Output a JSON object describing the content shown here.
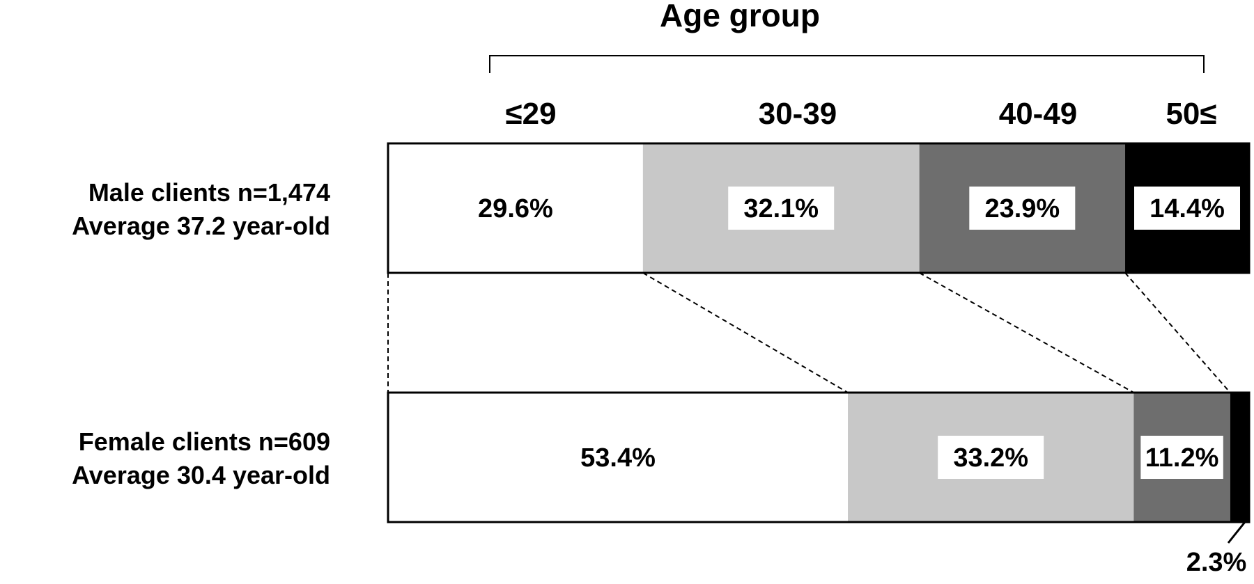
{
  "chart_data": {
    "type": "bar",
    "orientation": "horizontal",
    "stacked": true,
    "normalized_percent": true,
    "title": "Age group",
    "categories": [
      "≤29",
      "30-39",
      "40-49",
      "50≤"
    ],
    "series": [
      {
        "name": "Male clients n=1,474",
        "average_label": "Average 37.2 year-old",
        "values": [
          29.6,
          32.1,
          23.9,
          14.4
        ],
        "labels": [
          "29.6%",
          "32.1%",
          "23.9%",
          "14.4%"
        ]
      },
      {
        "name": "Female clients n=609",
        "average_label": "Average 30.4 year-old",
        "values": [
          53.4,
          33.2,
          11.2,
          2.3
        ],
        "labels": [
          "53.4%",
          "33.2%",
          "11.2%",
          "2.3%"
        ]
      }
    ],
    "colors": [
      "#ffffff",
      "#c8c8c8",
      "#6e6e6e",
      "#000000"
    ],
    "xlim": [
      0,
      100
    ],
    "grid": false,
    "legend": "none",
    "connector_lines": "dashed"
  }
}
